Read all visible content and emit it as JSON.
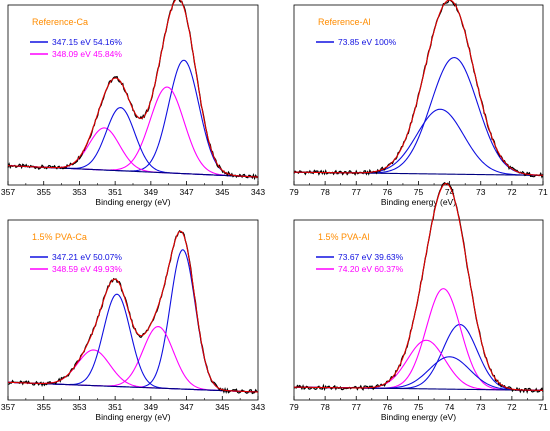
{
  "colors": {
    "title": "#ff8c00",
    "blue": "#1010e0",
    "magenta": "#ff00ff",
    "red": "#e00000",
    "navy": "#000080",
    "raw": "#000000"
  },
  "chart_data": [
    {
      "type": "line",
      "title": "Reference-Ca",
      "xlabel": "Binding energy (eV)",
      "xlim": [
        357,
        343
      ],
      "x_reversed": true,
      "xticks": [
        357,
        355,
        353,
        351,
        349,
        347,
        345,
        343
      ],
      "ylabels_shown": false,
      "background": {
        "start": 0.07,
        "end": 0.0
      },
      "components": [
        {
          "name": "347.15 eV 54.16%",
          "color": "blue",
          "center": 347.15,
          "height": 0.7,
          "sigma": 0.85
        },
        {
          "name": "348.09 eV 45.84%",
          "color": "magenta",
          "center": 348.09,
          "height": 0.53,
          "sigma": 0.95
        },
        {
          "name": "",
          "color": "magenta",
          "center": 351.6,
          "height": 0.26,
          "sigma": 0.85
        },
        {
          "name": "",
          "color": "blue",
          "center": 350.7,
          "height": 0.39,
          "sigma": 0.8
        }
      ]
    },
    {
      "type": "line",
      "title": "Reference-Al",
      "xlabel": "Binding energy (eV)",
      "xlim": [
        79,
        71
      ],
      "x_reversed": true,
      "xticks": [
        79,
        78,
        77,
        76,
        75,
        74,
        73,
        72,
        71
      ],
      "ylabels_shown": false,
      "background": {
        "start": 0.03,
        "end": 0.01
      },
      "components": [
        {
          "name": "73.85 eV 100%",
          "color": "blue",
          "center": 73.85,
          "height": 0.72,
          "sigma": 0.75
        },
        {
          "name": "",
          "color": "blue",
          "center": 74.3,
          "height": 0.4,
          "sigma": 0.75
        }
      ]
    },
    {
      "type": "line",
      "title": "1.5% PVA-Ca",
      "xlabel": "Binding energy (eV)",
      "xlim": [
        357,
        343
      ],
      "x_reversed": true,
      "xticks": [
        357,
        355,
        353,
        351,
        349,
        347,
        345,
        343
      ],
      "ylabels_shown": false,
      "background": {
        "start": 0.06,
        "end": 0.0
      },
      "components": [
        {
          "name": "347.21 eV 50.07%",
          "color": "blue",
          "center": 347.21,
          "height": 0.86,
          "sigma": 0.7
        },
        {
          "name": "348.59 eV 49.93%",
          "color": "magenta",
          "center": 348.59,
          "height": 0.38,
          "sigma": 0.85
        },
        {
          "name": "",
          "color": "magenta",
          "center": 352.2,
          "height": 0.22,
          "sigma": 0.9
        },
        {
          "name": "",
          "color": "blue",
          "center": 350.9,
          "height": 0.57,
          "sigma": 0.75
        }
      ]
    },
    {
      "type": "line",
      "title": "1.5% PVA-Al",
      "xlabel": "Binding energy (eV)",
      "xlim": [
        79,
        71
      ],
      "x_reversed": true,
      "xticks": [
        79,
        78,
        77,
        76,
        75,
        74,
        73,
        72,
        71
      ],
      "ylabels_shown": false,
      "background": {
        "start": 0.03,
        "end": 0.01
      },
      "components": [
        {
          "name": "73.67 eV 39.63%",
          "color": "blue",
          "center": 73.67,
          "height": 0.4,
          "sigma": 0.55
        },
        {
          "name": "74.20 eV 60.37%",
          "color": "magenta",
          "center": 74.2,
          "height": 0.62,
          "sigma": 0.55
        },
        {
          "name": "",
          "color": "magenta",
          "center": 74.75,
          "height": 0.3,
          "sigma": 0.6
        },
        {
          "name": "",
          "color": "blue",
          "center": 74.0,
          "height": 0.2,
          "sigma": 0.65
        }
      ]
    }
  ]
}
